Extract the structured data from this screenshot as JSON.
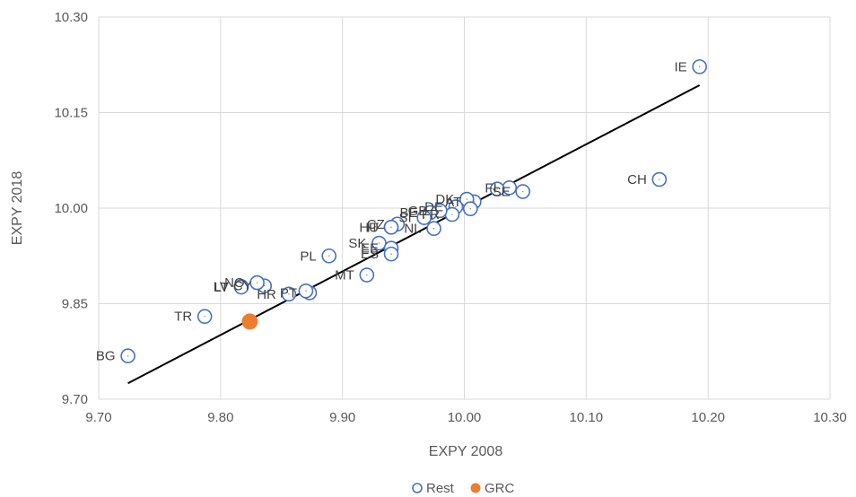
{
  "chart_data": {
    "type": "scatter",
    "xlabel": "EXPY 2008",
    "ylabel": "EXPY 2018",
    "xlim": [
      9.7,
      10.3
    ],
    "ylim": [
      9.7,
      10.3
    ],
    "xticks": [
      "9.70",
      "9.80",
      "9.90",
      "10.00",
      "10.10",
      "10.20",
      "10.30"
    ],
    "yticks": [
      "9.70",
      "9.85",
      "10.00",
      "10.15",
      "10.30"
    ],
    "grid": "vertical and horizontal",
    "legend_position": "bottom",
    "series": [
      {
        "name": "Rest",
        "color": "#4472c4",
        "marker": "hollow-circle",
        "points": [
          {
            "label": "IE",
            "x": 10.193,
            "y": 10.222
          },
          {
            "label": "CH",
            "x": 10.16,
            "y": 10.045
          },
          {
            "label": "SE",
            "x": 10.048,
            "y": 10.026
          },
          {
            "label": "FI",
            "x": 10.037,
            "y": 10.032
          },
          {
            "label": "",
            "x": 10.027,
            "y": 10.03
          },
          {
            "label": "AT",
            "x": 10.008,
            "y": 10.01
          },
          {
            "label": "DK",
            "x": 10.002,
            "y": 10.014
          },
          {
            "label": "",
            "x": 10.005,
            "y": 9.999
          },
          {
            "label": "DE",
            "x": 9.993,
            "y": 10.002
          },
          {
            "label": "FR",
            "x": 9.99,
            "y": 9.99
          },
          {
            "label": "GB",
            "x": 9.98,
            "y": 9.996
          },
          {
            "label": "BE",
            "x": 9.972,
            "y": 9.993
          },
          {
            "label": "SI",
            "x": 9.967,
            "y": 9.985
          },
          {
            "label": "NL",
            "x": 9.975,
            "y": 9.968
          },
          {
            "label": "CZ",
            "x": 9.945,
            "y": 9.975
          },
          {
            "label": "IT",
            "x": 9.94,
            "y": 9.97
          },
          {
            "label": "HU",
            "x": 9.94,
            "y": 9.97
          },
          {
            "label": "SK",
            "x": 9.93,
            "y": 9.945
          },
          {
            "label": "EE",
            "x": 9.94,
            "y": 9.937
          },
          {
            "label": "ES",
            "x": 9.94,
            "y": 9.928
          },
          {
            "label": "PL",
            "x": 9.889,
            "y": 9.925
          },
          {
            "label": "MT",
            "x": 9.92,
            "y": 9.895
          },
          {
            "label": "PT",
            "x": 9.873,
            "y": 9.867
          },
          {
            "label": "",
            "x": 9.87,
            "y": 9.87
          },
          {
            "label": "HR",
            "x": 9.856,
            "y": 9.865
          },
          {
            "label": "CY",
            "x": 9.836,
            "y": 9.878
          },
          {
            "label": "NO",
            "x": 9.83,
            "y": 9.883
          },
          {
            "label": "LV",
            "x": 9.817,
            "y": 9.877
          },
          {
            "label": "LT",
            "x": 9.817,
            "y": 9.876
          },
          {
            "label": "TR",
            "x": 9.787,
            "y": 9.83
          },
          {
            "label": "BG",
            "x": 9.724,
            "y": 9.768
          }
        ]
      },
      {
        "name": "GRC",
        "color": "#ed7d31",
        "marker": "filled-circle",
        "points": [
          {
            "label": "",
            "x": 9.824,
            "y": 9.822
          }
        ]
      }
    ],
    "trendline": {
      "x1": 9.724,
      "y1": 9.725,
      "x2": 10.193,
      "y2": 10.193,
      "color": "#000000"
    }
  }
}
